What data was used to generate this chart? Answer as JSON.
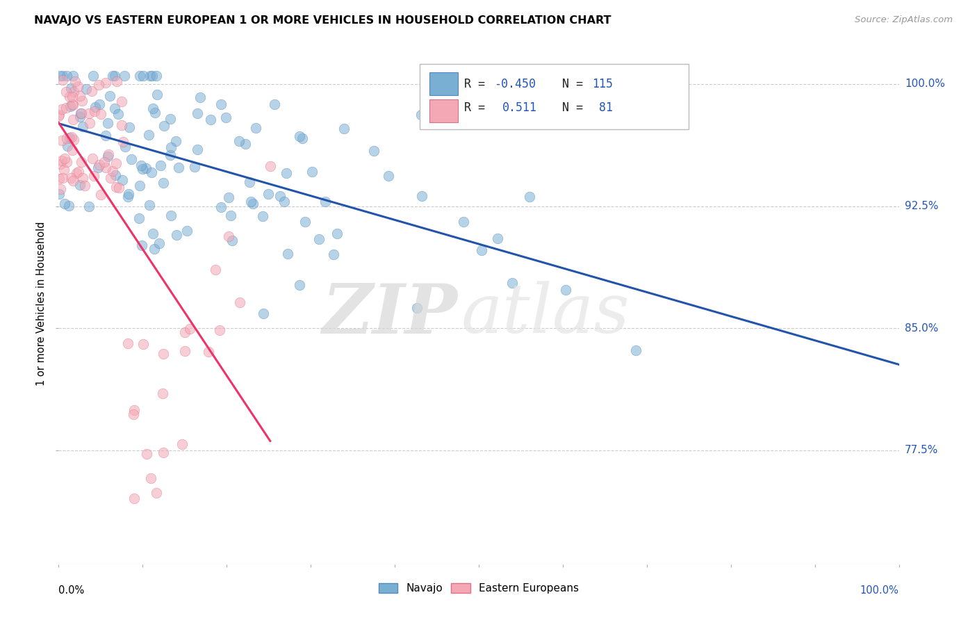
{
  "title": "NAVAJO VS EASTERN EUROPEAN 1 OR MORE VEHICLES IN HOUSEHOLD CORRELATION CHART",
  "source_text": "Source: ZipAtlas.com",
  "ylabel": "1 or more Vehicles in Household",
  "ytick_labels": [
    "100.0%",
    "92.5%",
    "85.0%",
    "77.5%"
  ],
  "ytick_values": [
    1.0,
    0.925,
    0.85,
    0.775
  ],
  "xlim": [
    0.0,
    1.0
  ],
  "ylim": [
    0.705,
    1.025
  ],
  "watermark_zip": "ZIP",
  "watermark_atlas": "atlas",
  "navajo_color": "#7aafd4",
  "eastern_color": "#f4a7b5",
  "navajo_edge_color": "#5588bb",
  "eastern_edge_color": "#e07088",
  "trendline_navajo_color": "#2255aa",
  "trendline_eastern_color": "#ee3366",
  "background_color": "#ffffff",
  "grid_color": "#cccccc",
  "legend_box_color": "#aaccee",
  "legend_pink_color": "#f4b8c4",
  "title_fontsize": 11.5,
  "scatter_size": 110,
  "scatter_alpha": 0.55
}
